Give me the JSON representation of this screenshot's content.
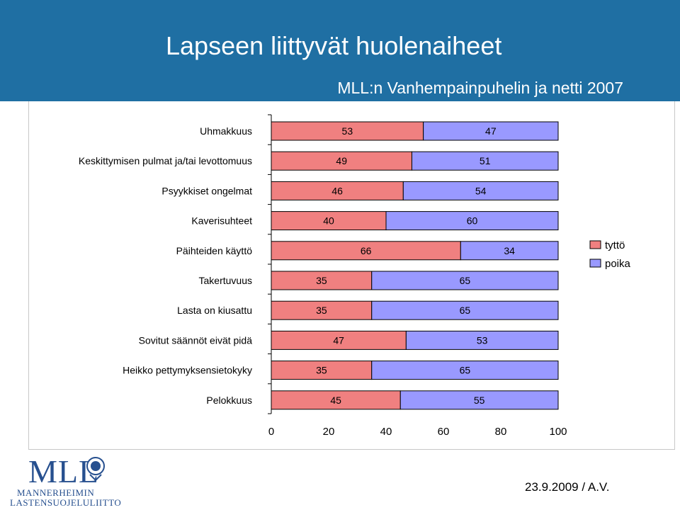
{
  "header": {
    "title": "Lapseen liittyvät huolenaiheet",
    "subtitle": "MLL:n Vanhempainpuhelin ja netti 2007"
  },
  "footer": {
    "date": "23.9.2009 / A.V.",
    "logo": {
      "mark": "MLL",
      "line1": "MANNERHEIMIN",
      "line2": "LASTENSUOJELULIITTO"
    }
  },
  "colors": {
    "header_bg": "#1f6fa3",
    "tytto": "#f08080",
    "poika": "#9999ff"
  },
  "chart_data": {
    "type": "bar",
    "orientation": "horizontal",
    "stacked": "percent",
    "categories": [
      "Uhmakkuus",
      "Keskittymisen pulmat ja/tai levottomuus",
      "Psyykkiset ongelmat",
      "Kaverisuhteet",
      "Päihteiden käyttö",
      "Takertuvuus",
      "Lasta on kiusattu",
      "Sovitut säännöt eivät pidä",
      "Heikko pettymyksensietokyky",
      "Pelokkuus"
    ],
    "series": [
      {
        "name": "tyttö",
        "color": "#f08080",
        "values": [
          53,
          49,
          46,
          40,
          66,
          35,
          35,
          47,
          35,
          45
        ]
      },
      {
        "name": "poika",
        "color": "#9999ff",
        "values": [
          47,
          51,
          54,
          60,
          34,
          65,
          65,
          53,
          65,
          55
        ]
      }
    ],
    "xlim": [
      0,
      100
    ],
    "xticks": [
      0,
      20,
      40,
      60,
      80,
      100
    ],
    "legend_position": "right",
    "grid": false
  }
}
